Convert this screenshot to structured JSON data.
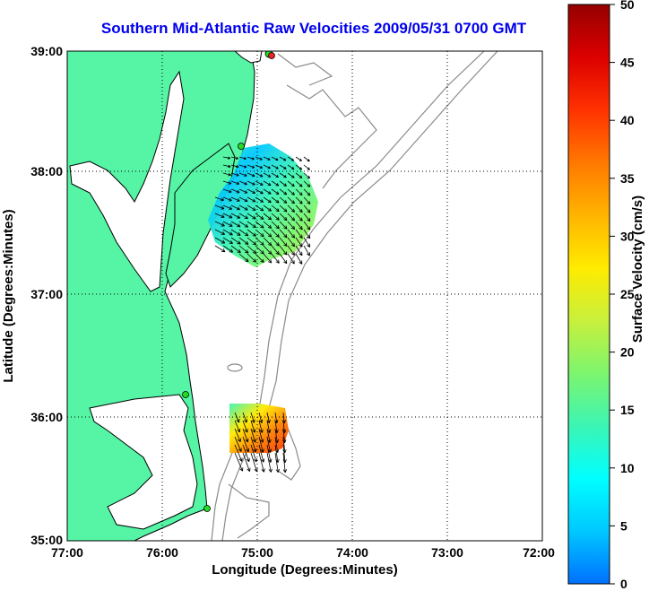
{
  "title": "Southern Mid-Atlantic Raw Velocities 2009/05/31 0700 GMT",
  "xlabel": "Longitude (Degrees:Minutes)",
  "ylabel": "Latitude (Degrees:Minutes)",
  "colorbar_label": "Surface Velocity (cm/s)",
  "x_ticks": [
    "77:00",
    "76:00",
    "75:00",
    "74:00",
    "73:00",
    "72:00"
  ],
  "y_ticks": [
    "39:00",
    "38:00",
    "37:00",
    "36:00",
    "35:00"
  ],
  "colorbar_ticks": [
    "50",
    "45",
    "40",
    "35",
    "30",
    "25",
    "20",
    "15",
    "10",
    "5",
    "0"
  ],
  "colors": {
    "land": "#55f5a5",
    "coast": "#000000",
    "bathymetry": "#8a8a8a",
    "grid": "#000000",
    "title": "#0000ee",
    "station": "#22dd22",
    "station_alt": "#ee2222"
  },
  "colorbar": {
    "min": 0,
    "max": 50,
    "stops": [
      "#0070ff",
      "#00c8ff",
      "#00ffff",
      "#3cf5b4",
      "#7df56e",
      "#c8f03c",
      "#ffeb00",
      "#ffb400",
      "#ff7800",
      "#ff3200",
      "#dc0000",
      "#960000"
    ]
  }
}
